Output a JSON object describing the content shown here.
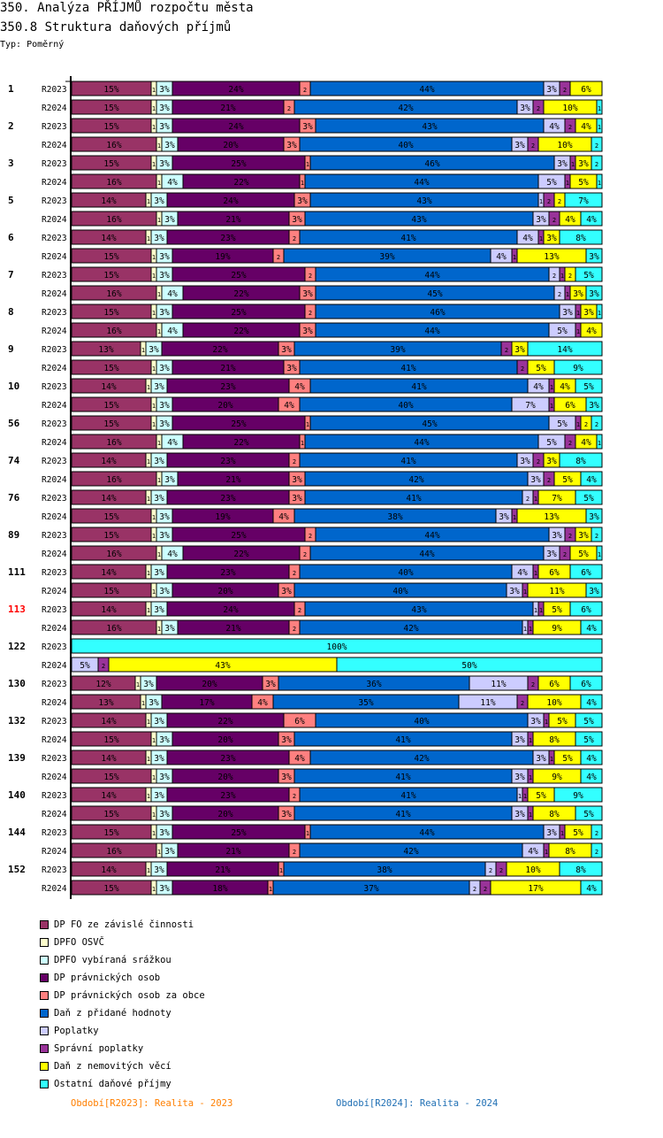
{
  "header": {
    "title": "350. Analýza PŘÍJMŮ rozpočtu města",
    "subtitle": "350.8 Struktura daňových příjmů",
    "type_label": "Typ: Poměrný"
  },
  "chart_data": {
    "type": "bar",
    "orientation": "horizontal",
    "stacked": true,
    "normalized": true,
    "title": "350.8 Struktura daňových příjmů",
    "xlabel": "",
    "ylabel": "",
    "xlim": [
      0,
      100
    ],
    "unit": "%",
    "series_names": [
      "DP FO ze závislé činnosti",
      "DPFO OSVČ",
      "DPFO vybíraná srážkou",
      "DP právnických osob",
      "DP právnických osob za obce",
      "Daň z přidané hodnoty",
      "Poplatky",
      "Správní poplatky",
      "Daň z nemovitých věcí",
      "Ostatní daňové příjmy"
    ],
    "series_colors": [
      "#993366",
      "#ffffcc",
      "#ccffff",
      "#660066",
      "#ff8080",
      "#0066cc",
      "#ccccff",
      "#993399",
      "#ffff00",
      "#33ffff"
    ],
    "highlight_group": "113",
    "highlight_color": "#ff0000",
    "groups": [
      {
        "id": "1",
        "rows": [
          {
            "period": "R2023",
            "values": [
              15,
              1,
              3,
              24,
              2,
              44,
              3,
              2,
              6,
              0
            ]
          },
          {
            "period": "R2024",
            "values": [
              15,
              1,
              3,
              21,
              2,
              42,
              3,
              2,
              10,
              1
            ]
          }
        ]
      },
      {
        "id": "2",
        "rows": [
          {
            "period": "R2023",
            "values": [
              15,
              1,
              3,
              24,
              3,
              43,
              4,
              2,
              4,
              1
            ]
          },
          {
            "period": "R2024",
            "values": [
              16,
              1,
              3,
              20,
              3,
              40,
              3,
              2,
              10,
              2
            ]
          }
        ]
      },
      {
        "id": "3",
        "rows": [
          {
            "period": "R2023",
            "values": [
              15,
              1,
              3,
              25,
              1,
              46,
              3,
              1,
              3,
              2
            ]
          },
          {
            "period": "R2024",
            "values": [
              16,
              1,
              4,
              22,
              1,
              44,
              5,
              1,
              5,
              1
            ]
          }
        ]
      },
      {
        "id": "5",
        "rows": [
          {
            "period": "R2023",
            "values": [
              14,
              1,
              3,
              24,
              3,
              43,
              1,
              2,
              2,
              7
            ]
          },
          {
            "period": "R2024",
            "values": [
              16,
              1,
              3,
              21,
              3,
              43,
              3,
              2,
              4,
              4
            ]
          }
        ]
      },
      {
        "id": "6",
        "rows": [
          {
            "period": "R2023",
            "values": [
              14,
              1,
              3,
              23,
              2,
              41,
              4,
              1,
              3,
              8
            ]
          },
          {
            "period": "R2024",
            "values": [
              15,
              1,
              3,
              19,
              2,
              39,
              4,
              1,
              13,
              3
            ]
          }
        ]
      },
      {
        "id": "7",
        "rows": [
          {
            "period": "R2023",
            "values": [
              15,
              1,
              3,
              25,
              2,
              44,
              2,
              1,
              2,
              5
            ]
          },
          {
            "period": "R2024",
            "values": [
              16,
              1,
              4,
              22,
              3,
              45,
              2,
              1,
              3,
              3
            ]
          }
        ]
      },
      {
        "id": "8",
        "rows": [
          {
            "period": "R2023",
            "values": [
              15,
              1,
              3,
              25,
              2,
              46,
              3,
              1,
              3,
              1
            ]
          },
          {
            "period": "R2024",
            "values": [
              16,
              1,
              4,
              22,
              3,
              44,
              5,
              1,
              4,
              0
            ]
          }
        ]
      },
      {
        "id": "9",
        "rows": [
          {
            "period": "R2023",
            "values": [
              13,
              1,
              3,
              22,
              3,
              39,
              0,
              2,
              3,
              14
            ]
          },
          {
            "period": "R2024",
            "values": [
              15,
              1,
              3,
              21,
              3,
              41,
              0,
              2,
              5,
              9
            ]
          }
        ]
      },
      {
        "id": "10",
        "rows": [
          {
            "period": "R2023",
            "values": [
              14,
              1,
              3,
              23,
              4,
              41,
              4,
              1,
              4,
              5
            ]
          },
          {
            "period": "R2024",
            "values": [
              15,
              1,
              3,
              20,
              4,
              40,
              7,
              1,
              6,
              3
            ]
          }
        ]
      },
      {
        "id": "56",
        "rows": [
          {
            "period": "R2023",
            "values": [
              15,
              1,
              3,
              25,
              1,
              45,
              5,
              1,
              2,
              2
            ]
          },
          {
            "period": "R2024",
            "values": [
              16,
              1,
              4,
              22,
              1,
              44,
              5,
              2,
              4,
              1
            ]
          }
        ]
      },
      {
        "id": "74",
        "rows": [
          {
            "period": "R2023",
            "values": [
              14,
              1,
              3,
              23,
              2,
              41,
              3,
              2,
              3,
              8
            ]
          },
          {
            "period": "R2024",
            "values": [
              16,
              1,
              3,
              21,
              3,
              42,
              3,
              2,
              5,
              4
            ]
          }
        ]
      },
      {
        "id": "76",
        "rows": [
          {
            "period": "R2023",
            "values": [
              14,
              1,
              3,
              23,
              3,
              41,
              2,
              1,
              7,
              5
            ]
          },
          {
            "period": "R2024",
            "values": [
              15,
              1,
              3,
              19,
              4,
              38,
              3,
              1,
              13,
              3
            ]
          }
        ]
      },
      {
        "id": "89",
        "rows": [
          {
            "period": "R2023",
            "values": [
              15,
              1,
              3,
              25,
              2,
              44,
              3,
              2,
              3,
              2
            ]
          },
          {
            "period": "R2024",
            "values": [
              16,
              1,
              4,
              22,
              2,
              44,
              3,
              2,
              5,
              1
            ]
          }
        ]
      },
      {
        "id": "111",
        "rows": [
          {
            "period": "R2023",
            "values": [
              14,
              1,
              3,
              23,
              2,
              40,
              4,
              1,
              6,
              6
            ]
          },
          {
            "period": "R2024",
            "values": [
              15,
              1,
              3,
              20,
              3,
              40,
              3,
              1,
              11,
              3
            ]
          }
        ]
      },
      {
        "id": "113",
        "rows": [
          {
            "period": "R2023",
            "values": [
              14,
              1,
              3,
              24,
              2,
              43,
              1,
              1,
              5,
              6
            ]
          },
          {
            "period": "R2024",
            "values": [
              16,
              1,
              3,
              21,
              2,
              42,
              1,
              1,
              9,
              4
            ]
          }
        ]
      },
      {
        "id": "122",
        "rows": [
          {
            "period": "R2023",
            "values": [
              0,
              0,
              0,
              0,
              0,
              0,
              0,
              0,
              0,
              100
            ]
          },
          {
            "period": "R2024",
            "values": [
              0,
              0,
              0,
              0,
              0,
              0,
              5,
              2,
              43,
              50
            ]
          }
        ]
      },
      {
        "id": "130",
        "rows": [
          {
            "period": "R2023",
            "values": [
              12,
              1,
              3,
              20,
              3,
              36,
              11,
              2,
              6,
              6
            ]
          },
          {
            "period": "R2024",
            "values": [
              13,
              1,
              3,
              17,
              4,
              35,
              11,
              2,
              10,
              4
            ]
          }
        ]
      },
      {
        "id": "132",
        "rows": [
          {
            "period": "R2023",
            "values": [
              14,
              1,
              3,
              22,
              6,
              40,
              3,
              1,
              5,
              5
            ]
          },
          {
            "period": "R2024",
            "values": [
              15,
              1,
              3,
              20,
              3,
              41,
              3,
              1,
              8,
              5
            ]
          }
        ]
      },
      {
        "id": "139",
        "rows": [
          {
            "period": "R2023",
            "values": [
              14,
              1,
              3,
              23,
              4,
              42,
              3,
              1,
              5,
              4
            ]
          },
          {
            "period": "R2024",
            "values": [
              15,
              1,
              3,
              20,
              3,
              41,
              3,
              1,
              9,
              4
            ]
          }
        ]
      },
      {
        "id": "140",
        "rows": [
          {
            "period": "R2023",
            "values": [
              14,
              1,
              3,
              23,
              2,
              41,
              1,
              1,
              5,
              9
            ]
          },
          {
            "period": "R2024",
            "values": [
              15,
              1,
              3,
              20,
              3,
              41,
              3,
              1,
              8,
              5
            ]
          }
        ]
      },
      {
        "id": "144",
        "rows": [
          {
            "period": "R2023",
            "values": [
              15,
              1,
              3,
              25,
              1,
              44,
              3,
              1,
              5,
              2
            ]
          },
          {
            "period": "R2024",
            "values": [
              16,
              1,
              3,
              21,
              2,
              42,
              4,
              1,
              8,
              2
            ]
          }
        ]
      },
      {
        "id": "152",
        "rows": [
          {
            "period": "R2023",
            "values": [
              14,
              1,
              3,
              21,
              1,
              38,
              2,
              2,
              10,
              8
            ]
          },
          {
            "period": "R2024",
            "values": [
              15,
              1,
              3,
              18,
              1,
              37,
              2,
              2,
              17,
              4
            ]
          }
        ]
      }
    ]
  },
  "legend": {
    "items": [
      {
        "label": "DP FO ze závislé činnosti",
        "color": "#993366"
      },
      {
        "label": "DPFO OSVČ",
        "color": "#ffffcc"
      },
      {
        "label": "DPFO vybíraná srážkou",
        "color": "#ccffff"
      },
      {
        "label": "DP právnických osob",
        "color": "#660066"
      },
      {
        "label": "DP právnických osob za obce",
        "color": "#ff8080"
      },
      {
        "label": "Daň z přidané hodnoty",
        "color": "#0066cc"
      },
      {
        "label": "Poplatky",
        "color": "#ccccff"
      },
      {
        "label": "Správní poplatky",
        "color": "#993399"
      },
      {
        "label": "Daň z nemovitých věcí",
        "color": "#ffff00"
      },
      {
        "label": "Ostatní daňové příjmy",
        "color": "#33ffff"
      }
    ]
  },
  "periods": {
    "r2023": "Období[R2023]: Realita - 2023",
    "r2024": "Období[R2024]: Realita - 2024"
  }
}
